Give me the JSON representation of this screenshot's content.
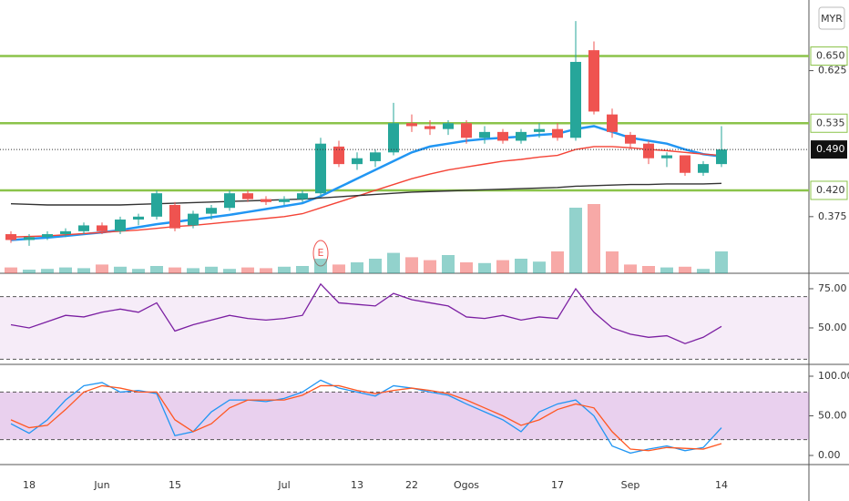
{
  "currency": "MYR",
  "chart_data": [
    {
      "type": "candlestick",
      "categories": [
        null,
        "18",
        null,
        null,
        null,
        "Jun",
        null,
        null,
        null,
        "15",
        null,
        null,
        null,
        null,
        null,
        "Jul",
        null,
        null,
        null,
        "13",
        null,
        null,
        "22",
        null,
        null,
        "Ogos",
        null,
        null,
        null,
        null,
        "17",
        null,
        null,
        null,
        "Sep",
        null,
        null,
        null,
        null,
        "14"
      ],
      "events": [
        null,
        null,
        null,
        null,
        null,
        null,
        null,
        null,
        null,
        null,
        null,
        null,
        null,
        null,
        null,
        null,
        null,
        "E",
        null,
        null,
        null,
        null,
        null,
        null,
        null,
        null,
        null,
        null,
        null,
        null,
        null,
        null,
        null,
        null,
        null,
        null,
        null,
        null,
        null,
        null
      ],
      "open": [
        0.345,
        0.335,
        0.34,
        0.345,
        0.35,
        0.36,
        0.35,
        0.37,
        0.375,
        0.395,
        0.36,
        0.38,
        0.39,
        0.415,
        0.405,
        0.4,
        0.405,
        0.415,
        0.495,
        0.465,
        0.47,
        0.485,
        0.535,
        0.53,
        0.525,
        0.535,
        0.51,
        0.52,
        0.505,
        0.52,
        0.525,
        0.51,
        0.66,
        0.55,
        0.515,
        0.5,
        0.475,
        0.48,
        0.45,
        0.465
      ],
      "high": [
        0.35,
        0.345,
        0.35,
        0.355,
        0.365,
        0.365,
        0.375,
        0.38,
        0.42,
        0.4,
        0.385,
        0.395,
        0.42,
        0.42,
        0.41,
        0.41,
        0.42,
        0.51,
        0.505,
        0.485,
        0.49,
        0.57,
        0.55,
        0.54,
        0.54,
        0.54,
        0.53,
        0.525,
        0.525,
        0.535,
        0.535,
        0.71,
        0.675,
        0.56,
        0.52,
        0.505,
        0.485,
        0.48,
        0.47,
        0.53
      ],
      "low": [
        0.33,
        0.325,
        0.335,
        0.34,
        0.345,
        0.345,
        0.345,
        0.36,
        0.37,
        0.35,
        0.355,
        0.37,
        0.385,
        0.4,
        0.395,
        0.395,
        0.4,
        0.41,
        0.46,
        0.455,
        0.46,
        0.48,
        0.52,
        0.515,
        0.515,
        0.5,
        0.5,
        0.5,
        0.5,
        0.51,
        0.505,
        0.505,
        0.55,
        0.51,
        0.49,
        0.465,
        0.46,
        0.445,
        0.445,
        0.46
      ],
      "close": [
        0.335,
        0.34,
        0.345,
        0.35,
        0.36,
        0.35,
        0.37,
        0.375,
        0.415,
        0.355,
        0.38,
        0.39,
        0.415,
        0.405,
        0.4,
        0.405,
        0.415,
        0.5,
        0.465,
        0.475,
        0.485,
        0.535,
        0.53,
        0.525,
        0.535,
        0.51,
        0.52,
        0.505,
        0.52,
        0.525,
        0.51,
        0.64,
        0.555,
        0.52,
        0.5,
        0.475,
        0.48,
        0.45,
        0.465,
        0.49
      ],
      "up_color": "#26a69a",
      "down_color": "#ef5350",
      "moving_averages": [
        {
          "color": "#2196f3",
          "values": [
            0.335,
            0.337,
            0.339,
            0.342,
            0.345,
            0.348,
            0.352,
            0.357,
            0.362,
            0.366,
            0.37,
            0.374,
            0.378,
            0.383,
            0.388,
            0.393,
            0.398,
            0.41,
            0.425,
            0.44,
            0.455,
            0.47,
            0.485,
            0.495,
            0.5,
            0.505,
            0.508,
            0.51,
            0.512,
            0.515,
            0.517,
            0.525,
            0.53,
            0.52,
            0.51,
            0.505,
            0.5,
            0.49,
            0.482,
            0.478
          ]
        },
        {
          "color": "#f44336",
          "values": [
            0.34,
            0.341,
            0.342,
            0.344,
            0.346,
            0.348,
            0.35,
            0.352,
            0.355,
            0.358,
            0.36,
            0.363,
            0.366,
            0.369,
            0.372,
            0.375,
            0.38,
            0.39,
            0.4,
            0.41,
            0.42,
            0.43,
            0.44,
            0.448,
            0.455,
            0.46,
            0.465,
            0.47,
            0.473,
            0.477,
            0.48,
            0.49,
            0.495,
            0.495,
            0.493,
            0.49,
            0.488,
            0.485,
            0.482,
            0.48
          ]
        },
        {
          "color": "#333333",
          "values": [
            0.397,
            0.396,
            0.395,
            0.395,
            0.395,
            0.395,
            0.395,
            0.396,
            0.397,
            0.398,
            0.399,
            0.4,
            0.401,
            0.402,
            0.403,
            0.404,
            0.405,
            0.407,
            0.409,
            0.411,
            0.413,
            0.415,
            0.417,
            0.418,
            0.419,
            0.42,
            0.421,
            0.422,
            0.423,
            0.424,
            0.425,
            0.427,
            0.428,
            0.429,
            0.43,
            0.43,
            0.431,
            0.431,
            0.431,
            0.432
          ]
        }
      ],
      "ylim": [
        0.278,
        0.746
      ],
      "yticks": [
        0.375,
        0.625
      ],
      "levels": [
        {
          "value": 0.65,
          "label": "0.650"
        },
        {
          "value": 0.535,
          "label": "0.535"
        },
        {
          "value": 0.42,
          "label": "0.420"
        }
      ],
      "level_color": "#8bc34a",
      "last_price": {
        "value": 0.49,
        "label": "0.490"
      }
    },
    {
      "type": "volume",
      "values": [
        8,
        5,
        6,
        8,
        7,
        12,
        9,
        6,
        10,
        8,
        7,
        9,
        6,
        8,
        7,
        9,
        10,
        20,
        12,
        15,
        20,
        28,
        22,
        18,
        25,
        15,
        14,
        18,
        20,
        16,
        30,
        90,
        95,
        30,
        12,
        10,
        8,
        9,
        6,
        30
      ],
      "ylim": [
        0,
        100
      ]
    },
    {
      "type": "line",
      "series": [
        {
          "color": "#7b1fa2",
          "values": [
            52,
            50,
            54,
            58,
            57,
            60,
            62,
            60,
            66,
            48,
            52,
            55,
            58,
            56,
            55,
            56,
            58,
            78,
            66,
            65,
            64,
            72,
            68,
            66,
            64,
            57,
            56,
            58,
            55,
            57,
            56,
            75,
            60,
            50,
            46,
            44,
            45,
            40,
            44,
            51
          ]
        }
      ],
      "band": [
        30,
        70
      ],
      "band_color": "rgba(156,39,176,0.09)",
      "ylim": [
        27.9,
        83.7
      ],
      "yticks": [
        {
          "value": 75,
          "label": "75.00"
        },
        {
          "value": 50,
          "label": "50.00"
        }
      ]
    },
    {
      "type": "line",
      "series": [
        {
          "color": "#2196f3",
          "values": [
            40,
            28,
            45,
            70,
            88,
            92,
            80,
            82,
            78,
            25,
            30,
            55,
            70,
            70,
            68,
            72,
            80,
            95,
            85,
            80,
            75,
            88,
            85,
            80,
            76,
            65,
            55,
            45,
            30,
            55,
            65,
            70,
            50,
            12,
            3,
            8,
            12,
            6,
            10,
            35
          ]
        },
        {
          "color": "#ff5722",
          "values": [
            45,
            35,
            38,
            58,
            80,
            88,
            85,
            80,
            80,
            45,
            30,
            40,
            60,
            70,
            70,
            70,
            76,
            88,
            88,
            82,
            78,
            82,
            85,
            82,
            78,
            70,
            60,
            50,
            38,
            45,
            58,
            65,
            60,
            30,
            8,
            6,
            10,
            9,
            8,
            15
          ]
        }
      ],
      "band": [
        20,
        80
      ],
      "band_color": "rgba(156,39,176,0.22)",
      "ylim": [
        -11.5,
        111.5
      ],
      "yticks": [
        {
          "value": 100,
          "label": "100.00"
        },
        {
          "value": 50,
          "label": "50.00"
        },
        {
          "value": 0,
          "label": "0.00"
        }
      ]
    }
  ]
}
